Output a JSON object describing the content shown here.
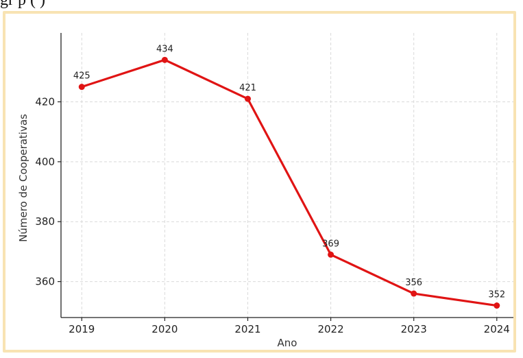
{
  "header": {
    "caption_fragment": "gr                                                                          p                            (                    )"
  },
  "colors": {
    "line": "#e01414",
    "frame": "#f8e3b3",
    "grid": "#d9d9d9"
  },
  "chart_data": {
    "type": "line",
    "title": "",
    "xlabel": "Ano",
    "ylabel": "Número de Cooperativas",
    "categories": [
      "2019",
      "2020",
      "2021",
      "2022",
      "2023",
      "2024"
    ],
    "x": [
      2019,
      2020,
      2021,
      2022,
      2023,
      2024
    ],
    "series": [
      {
        "values": [
          425,
          434,
          421,
          369,
          356,
          352
        ],
        "labels": [
          "425",
          "434",
          "421",
          "369",
          "356",
          "352"
        ]
      }
    ],
    "y_ticks": [
      360,
      380,
      400,
      420
    ],
    "y_tick_labels": [
      "360",
      "380",
      "400",
      "420"
    ],
    "ylim": [
      348,
      443
    ],
    "xlim": [
      2018.75,
      2024.2
    ],
    "grid": true
  }
}
